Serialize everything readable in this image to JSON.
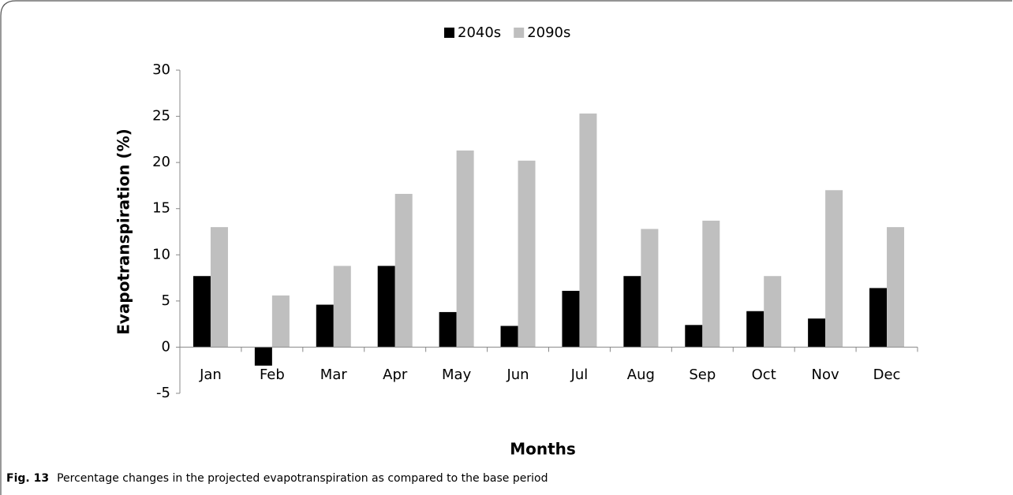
{
  "chart_data": {
    "type": "bar",
    "categories": [
      "Jan",
      "Feb",
      "Mar",
      "Apr",
      "May",
      "Jun",
      "Jul",
      "Aug",
      "Sep",
      "Oct",
      "Nov",
      "Dec"
    ],
    "series": [
      {
        "name": "2040s",
        "color": "#000000",
        "values": [
          7.7,
          -2.0,
          4.6,
          8.8,
          3.8,
          2.3,
          6.1,
          7.7,
          2.4,
          3.9,
          3.1,
          6.4
        ]
      },
      {
        "name": "2090s",
        "color": "#bfbfbf",
        "values": [
          13.0,
          5.6,
          8.8,
          16.6,
          21.3,
          20.2,
          25.3,
          12.8,
          13.7,
          7.7,
          17.0,
          13.0
        ]
      }
    ],
    "ylim": [
      -5,
      30
    ],
    "yticks": [
      -5,
      0,
      5,
      10,
      15,
      20,
      25,
      30
    ],
    "xlabel": "Months",
    "ylabel": "Evapotranspiration (%)",
    "legend": "top",
    "caption_label": "Fig. 13",
    "caption": "Percentage changes in the projected evapotranspiration as compared to the base period"
  }
}
